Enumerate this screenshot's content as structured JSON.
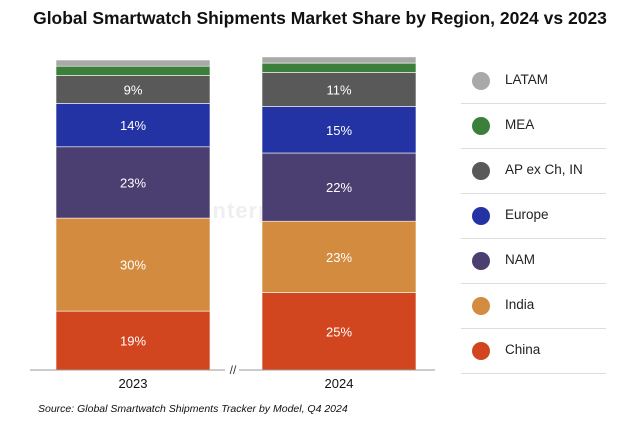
{
  "chart_data": {
    "type": "bar",
    "stacked": true,
    "title": "Global Smartwatch Shipments Market Share by Region, 2024 vs 2023",
    "categories": [
      "2023",
      "2024"
    ],
    "series": [
      {
        "name": "China",
        "color": "#d2461f",
        "values": [
          19,
          25
        ],
        "labels": [
          "19%",
          "25%"
        ]
      },
      {
        "name": "India",
        "color": "#d38b3f",
        "values": [
          30,
          23
        ],
        "labels": [
          "30%",
          "23%"
        ]
      },
      {
        "name": "NAM",
        "color": "#4b3f72",
        "values": [
          23,
          22
        ],
        "labels": [
          "23%",
          "22%"
        ]
      },
      {
        "name": "Europe",
        "color": "#2433a3",
        "values": [
          14,
          15
        ],
        "labels": [
          "14%",
          "15%"
        ]
      },
      {
        "name": "AP ex Ch, IN",
        "color": "#595959",
        "values": [
          9,
          11
        ],
        "labels": [
          "9%",
          "11%"
        ]
      },
      {
        "name": "MEA",
        "color": "#3b7f3b",
        "values": [
          3,
          3
        ],
        "labels": [
          "",
          ""
        ]
      },
      {
        "name": "LATAM",
        "color": "#a9a9a9",
        "values": [
          2,
          2
        ],
        "labels": [
          "",
          ""
        ]
      }
    ],
    "legend_order": [
      "LATAM",
      "MEA",
      "AP ex Ch, IN",
      "Europe",
      "NAM",
      "India",
      "China"
    ],
    "axis_break_label": "//",
    "ylim": [
      0,
      100
    ],
    "legend_position": "right"
  },
  "source": "Source: Global Smartwatch Shipments Tracker by Model, Q4 2024",
  "watermark": "Counterpoint"
}
